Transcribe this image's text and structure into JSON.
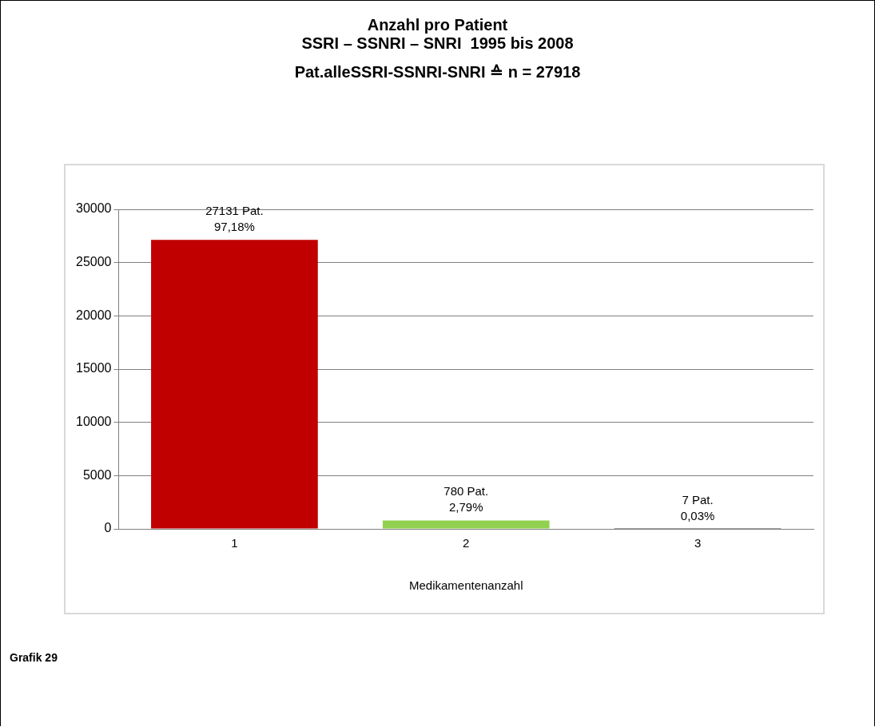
{
  "chart_data": {
    "type": "bar",
    "title": "Anzahl pro Patient\nSSRI – SSNRI – SNRI  1995 bis 2008",
    "subtitle": "Pat.alleSSRI-SSNRI-SNRI ≙ n = 27918",
    "categories": [
      "1",
      "2",
      "3"
    ],
    "values": [
      27131,
      780,
      7
    ],
    "colors": [
      "#c00000",
      "#92d050",
      "#404040"
    ],
    "value_labels": [
      "27131 Pat.\n97,18%",
      "780 Pat.\n2,79%",
      "7 Pat.\n0,03%"
    ],
    "xlabel": "Medikamentenanzahl",
    "ylim": [
      0,
      30000
    ],
    "yticks": [
      0,
      5000,
      10000,
      15000,
      20000,
      25000,
      30000
    ],
    "grid": "y",
    "legend": false,
    "annotations": [
      "Grafik 29"
    ]
  }
}
